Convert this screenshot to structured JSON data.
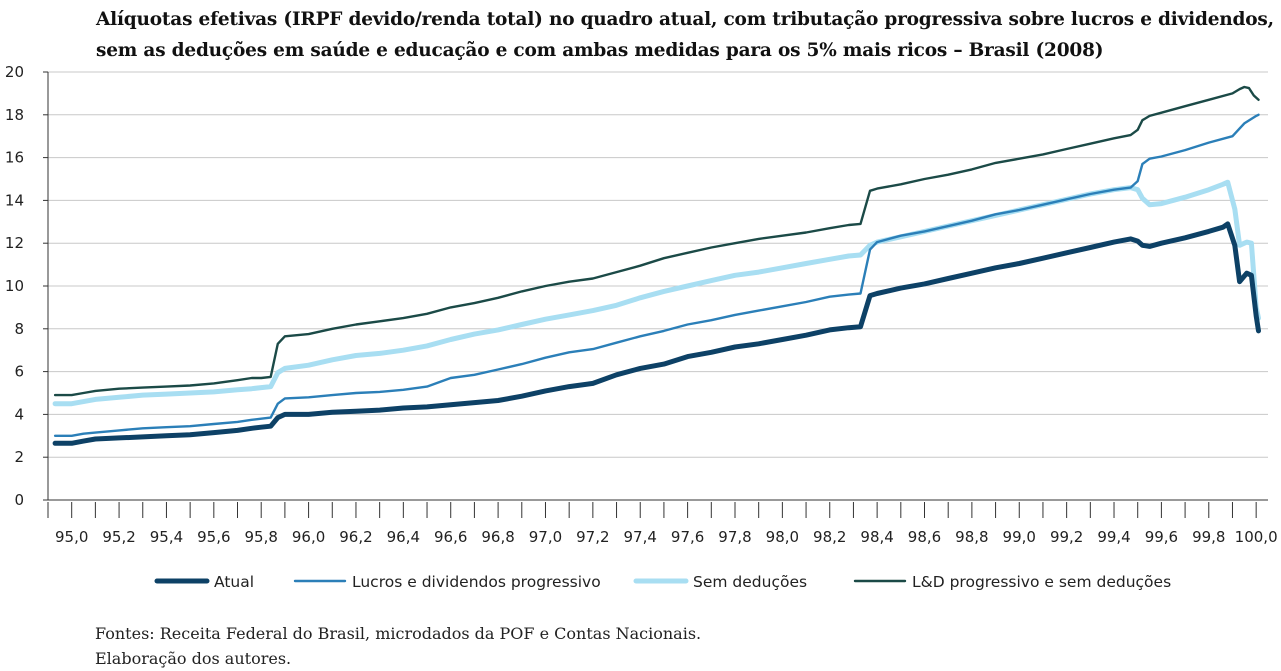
{
  "chart_data": {
    "type": "line",
    "title_line1": "Alíquotas efetivas (IRPF devido/renda total) no quadro atual, com tributação progressiva sobre lucros e dividendos,",
    "title_line2": "sem as deduções em saúde e educação e com ambas medidas para os 5% mais ricos – Brasil (2008)",
    "xlabel": "",
    "ylabel": "",
    "xlim": [
      94.9,
      100.05
    ],
    "ylim": [
      0,
      20
    ],
    "y_ticks": [
      "0",
      "2",
      "4",
      "6",
      "8",
      "10",
      "12",
      "14",
      "16",
      "18",
      "20"
    ],
    "x_ticks": [
      "95,0",
      "95,2",
      "95,4",
      "95,6",
      "95,8",
      "96,0",
      "96,2",
      "96,4",
      "96,6",
      "96,8",
      "97,0",
      "97,2",
      "97,4",
      "97,6",
      "97,8",
      "98,0",
      "98,2",
      "98,4",
      "98,6",
      "98,8",
      "99,0",
      "99,2",
      "99,4",
      "99,6",
      "99,8",
      "100,0"
    ],
    "x_tick_values": [
      95.0,
      95.2,
      95.4,
      95.6,
      95.8,
      96.0,
      96.2,
      96.4,
      96.6,
      96.8,
      97.0,
      97.2,
      97.4,
      97.6,
      97.8,
      98.0,
      98.2,
      98.4,
      98.6,
      98.8,
      99.0,
      99.2,
      99.4,
      99.6,
      99.8,
      100.0
    ],
    "grid": true,
    "legend_position": "bottom",
    "series": [
      {
        "name": "L&D progressivo e sem deduções",
        "color": "#1b4a47",
        "x": [
          94.93,
          95.0,
          95.05,
          95.1,
          95.2,
          95.3,
          95.4,
          95.5,
          95.6,
          95.7,
          95.76,
          95.8,
          95.84,
          95.87,
          95.9,
          96.0,
          96.1,
          96.2,
          96.3,
          96.4,
          96.5,
          96.6,
          96.7,
          96.8,
          96.9,
          97.0,
          97.1,
          97.2,
          97.3,
          97.4,
          97.5,
          97.6,
          97.7,
          97.8,
          97.9,
          98.0,
          98.1,
          98.2,
          98.28,
          98.33,
          98.37,
          98.4,
          98.5,
          98.6,
          98.7,
          98.8,
          98.9,
          99.0,
          99.1,
          99.2,
          99.3,
          99.4,
          99.47,
          99.5,
          99.52,
          99.55,
          99.6,
          99.7,
          99.8,
          99.9,
          99.93,
          99.95,
          99.97,
          99.99,
          100.01
        ],
        "values": [
          4.9,
          4.9,
          5.0,
          5.1,
          5.2,
          5.25,
          5.3,
          5.35,
          5.45,
          5.6,
          5.7,
          5.7,
          5.75,
          7.3,
          7.65,
          7.75,
          8.0,
          8.2,
          8.35,
          8.5,
          8.7,
          9.0,
          9.2,
          9.45,
          9.75,
          10.0,
          10.2,
          10.35,
          10.65,
          10.95,
          11.3,
          11.55,
          11.8,
          12.0,
          12.2,
          12.35,
          12.5,
          12.7,
          12.85,
          12.9,
          14.45,
          14.55,
          14.75,
          15.0,
          15.2,
          15.45,
          15.75,
          15.95,
          16.15,
          16.4,
          16.65,
          16.9,
          17.05,
          17.3,
          17.75,
          17.95,
          18.1,
          18.4,
          18.7,
          19.0,
          19.2,
          19.3,
          19.25,
          18.9,
          18.7
        ]
      },
      {
        "name": "Sem deduções",
        "color": "#a8def2",
        "x": [
          94.93,
          95.0,
          95.05,
          95.1,
          95.2,
          95.3,
          95.4,
          95.5,
          95.6,
          95.7,
          95.76,
          95.8,
          95.84,
          95.87,
          95.9,
          96.0,
          96.1,
          96.2,
          96.3,
          96.4,
          96.5,
          96.6,
          96.7,
          96.8,
          96.9,
          97.0,
          97.1,
          97.2,
          97.3,
          97.4,
          97.5,
          97.6,
          97.7,
          97.8,
          97.9,
          98.0,
          98.1,
          98.2,
          98.28,
          98.33,
          98.37,
          98.4,
          98.5,
          98.6,
          98.7,
          98.8,
          98.9,
          99.0,
          99.1,
          99.2,
          99.3,
          99.4,
          99.47,
          99.5,
          99.52,
          99.55,
          99.6,
          99.7,
          99.8,
          99.86,
          99.88,
          99.91,
          99.93,
          99.96,
          99.98,
          100.0,
          100.01
        ],
        "values": [
          4.5,
          4.5,
          4.6,
          4.7,
          4.8,
          4.9,
          4.95,
          5.0,
          5.05,
          5.15,
          5.2,
          5.25,
          5.3,
          5.95,
          6.15,
          6.3,
          6.55,
          6.75,
          6.85,
          7.0,
          7.2,
          7.5,
          7.75,
          7.95,
          8.2,
          8.45,
          8.65,
          8.85,
          9.1,
          9.45,
          9.75,
          10.0,
          10.25,
          10.5,
          10.65,
          10.85,
          11.05,
          11.25,
          11.4,
          11.45,
          11.9,
          12.05,
          12.3,
          12.55,
          12.8,
          13.05,
          13.3,
          13.55,
          13.8,
          14.05,
          14.3,
          14.5,
          14.6,
          14.5,
          14.1,
          13.8,
          13.85,
          14.15,
          14.5,
          14.75,
          14.85,
          13.6,
          11.9,
          12.05,
          12.0,
          9.0,
          8.5
        ]
      },
      {
        "name": "Lucros e dividendos progressivo",
        "color": "#2b7fb8",
        "x": [
          94.93,
          95.0,
          95.05,
          95.1,
          95.2,
          95.3,
          95.4,
          95.5,
          95.6,
          95.7,
          95.76,
          95.8,
          95.84,
          95.87,
          95.9,
          96.0,
          96.1,
          96.2,
          96.3,
          96.4,
          96.5,
          96.6,
          96.7,
          96.8,
          96.9,
          97.0,
          97.1,
          97.2,
          97.3,
          97.4,
          97.5,
          97.6,
          97.7,
          97.8,
          97.9,
          98.0,
          98.1,
          98.2,
          98.28,
          98.33,
          98.37,
          98.4,
          98.5,
          98.6,
          98.7,
          98.8,
          98.9,
          99.0,
          99.1,
          99.2,
          99.3,
          99.4,
          99.47,
          99.5,
          99.52,
          99.55,
          99.6,
          99.7,
          99.8,
          99.9,
          99.95,
          100.0,
          100.01
        ],
        "values": [
          3.0,
          3.0,
          3.1,
          3.15,
          3.25,
          3.35,
          3.4,
          3.45,
          3.55,
          3.65,
          3.75,
          3.8,
          3.85,
          4.5,
          4.75,
          4.8,
          4.9,
          5.0,
          5.05,
          5.15,
          5.3,
          5.7,
          5.85,
          6.1,
          6.35,
          6.65,
          6.9,
          7.05,
          7.35,
          7.65,
          7.9,
          8.2,
          8.4,
          8.65,
          8.85,
          9.05,
          9.25,
          9.5,
          9.6,
          9.65,
          11.7,
          12.05,
          12.35,
          12.55,
          12.8,
          13.05,
          13.35,
          13.55,
          13.8,
          14.05,
          14.3,
          14.5,
          14.6,
          14.9,
          15.7,
          15.95,
          16.05,
          16.35,
          16.7,
          17.0,
          17.6,
          17.95,
          18.0
        ]
      },
      {
        "name": "Atual",
        "color": "#0d4166",
        "x": [
          94.93,
          95.0,
          95.05,
          95.1,
          95.2,
          95.3,
          95.4,
          95.5,
          95.6,
          95.7,
          95.76,
          95.8,
          95.84,
          95.87,
          95.9,
          96.0,
          96.1,
          96.2,
          96.3,
          96.4,
          96.5,
          96.6,
          96.7,
          96.8,
          96.9,
          97.0,
          97.1,
          97.2,
          97.3,
          97.4,
          97.5,
          97.6,
          97.7,
          97.8,
          97.9,
          98.0,
          98.1,
          98.2,
          98.28,
          98.33,
          98.37,
          98.4,
          98.5,
          98.6,
          98.7,
          98.8,
          98.9,
          99.0,
          99.1,
          99.2,
          99.3,
          99.4,
          99.47,
          99.5,
          99.52,
          99.55,
          99.6,
          99.7,
          99.8,
          99.86,
          99.88,
          99.91,
          99.93,
          99.96,
          99.98,
          100.0,
          100.01
        ],
        "values": [
          2.65,
          2.65,
          2.75,
          2.85,
          2.9,
          2.95,
          3.0,
          3.05,
          3.15,
          3.25,
          3.35,
          3.4,
          3.45,
          3.85,
          4.0,
          4.0,
          4.1,
          4.15,
          4.2,
          4.3,
          4.35,
          4.45,
          4.55,
          4.65,
          4.85,
          5.1,
          5.3,
          5.45,
          5.85,
          6.15,
          6.35,
          6.7,
          6.9,
          7.15,
          7.3,
          7.5,
          7.7,
          7.95,
          8.05,
          8.1,
          9.55,
          9.65,
          9.9,
          10.1,
          10.35,
          10.6,
          10.85,
          11.05,
          11.3,
          11.55,
          11.8,
          12.05,
          12.2,
          12.1,
          11.9,
          11.85,
          12.0,
          12.25,
          12.55,
          12.75,
          12.9,
          11.9,
          10.2,
          10.6,
          10.5,
          8.6,
          7.9
        ]
      }
    ],
    "legend": [
      {
        "name": "Atual",
        "color": "#0d4166",
        "width": 5
      },
      {
        "name": "Lucros e dividendos progressivo",
        "color": "#2b7fb8",
        "width": 2.4
      },
      {
        "name": "Sem deduções",
        "color": "#a8def2",
        "width": 5
      },
      {
        "name": "L&D progressivo e sem deduções",
        "color": "#1b4a47",
        "width": 2.4
      }
    ]
  },
  "source": {
    "line1": " Fontes: Receita Federal do Brasil, microdados da POF e Contas Nacionais.",
    "line2": "Elaboração dos autores."
  }
}
